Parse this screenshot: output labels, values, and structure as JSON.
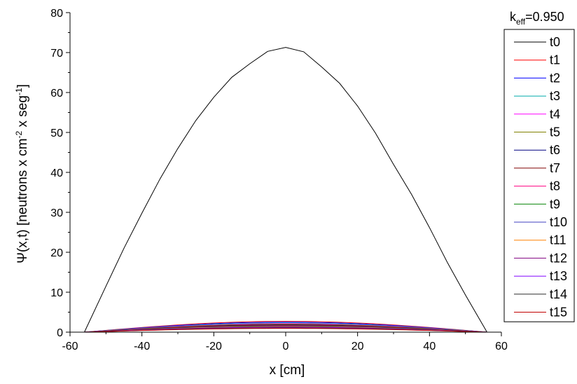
{
  "chart_data": {
    "type": "line",
    "annotation": "k",
    "annotation_sub": "eff",
    "annotation_value": "=0.950",
    "xlabel": "x [cm]",
    "ylabel_parts": [
      "Ψ(x,t) [neutrons x cm",
      "-2",
      " x seg",
      "-1",
      "]"
    ],
    "xlim": [
      -60,
      60
    ],
    "ylim": [
      0,
      80
    ],
    "x_ticks": [
      -60,
      -40,
      -20,
      0,
      20,
      40,
      60
    ],
    "y_ticks": [
      0,
      10,
      20,
      30,
      40,
      50,
      60,
      70,
      80
    ],
    "grid": false,
    "legend_position": "right",
    "series": [
      {
        "name": "t0",
        "color": "#000000",
        "x": [
          -56,
          -50,
          -45,
          -40,
          -35,
          -30,
          -25,
          -20,
          -15,
          -10,
          -5,
          0,
          5,
          10,
          15,
          20,
          25,
          30,
          35,
          40,
          45,
          50,
          56
        ],
        "y": [
          0,
          11.5,
          21.0,
          29.8,
          38.3,
          46.0,
          53.0,
          58.8,
          63.8,
          67.2,
          70.3,
          71.3,
          70.2,
          66.4,
          62.3,
          56.6,
          49.8,
          42.0,
          34.5,
          26.2,
          17.4,
          9.3,
          0
        ]
      },
      {
        "name": "t1",
        "color": "#ff0000",
        "peak": 2.7
      },
      {
        "name": "t2",
        "color": "#0000ff",
        "peak": 2.5
      },
      {
        "name": "t3",
        "color": "#00aaaa",
        "peak": 2.3
      },
      {
        "name": "t4",
        "color": "#ff00ff",
        "peak": 2.15
      },
      {
        "name": "t5",
        "color": "#808000",
        "peak": 2.0
      },
      {
        "name": "t6",
        "color": "#000080",
        "peak": 1.85
      },
      {
        "name": "t7",
        "color": "#800000",
        "peak": 1.75
      },
      {
        "name": "t8",
        "color": "#ff0080",
        "peak": 1.65
      },
      {
        "name": "t9",
        "color": "#008000",
        "peak": 1.55
      },
      {
        "name": "t10",
        "color": "#4040c0",
        "peak": 1.45
      },
      {
        "name": "t11",
        "color": "#ff8000",
        "peak": 1.35
      },
      {
        "name": "t12",
        "color": "#800080",
        "peak": 1.25
      },
      {
        "name": "t13",
        "color": "#8000ff",
        "peak": 1.15
      },
      {
        "name": "t14",
        "color": "#303030",
        "peak": 1.05
      },
      {
        "name": "t15",
        "color": "#c00000",
        "peak": 0.95
      }
    ]
  }
}
